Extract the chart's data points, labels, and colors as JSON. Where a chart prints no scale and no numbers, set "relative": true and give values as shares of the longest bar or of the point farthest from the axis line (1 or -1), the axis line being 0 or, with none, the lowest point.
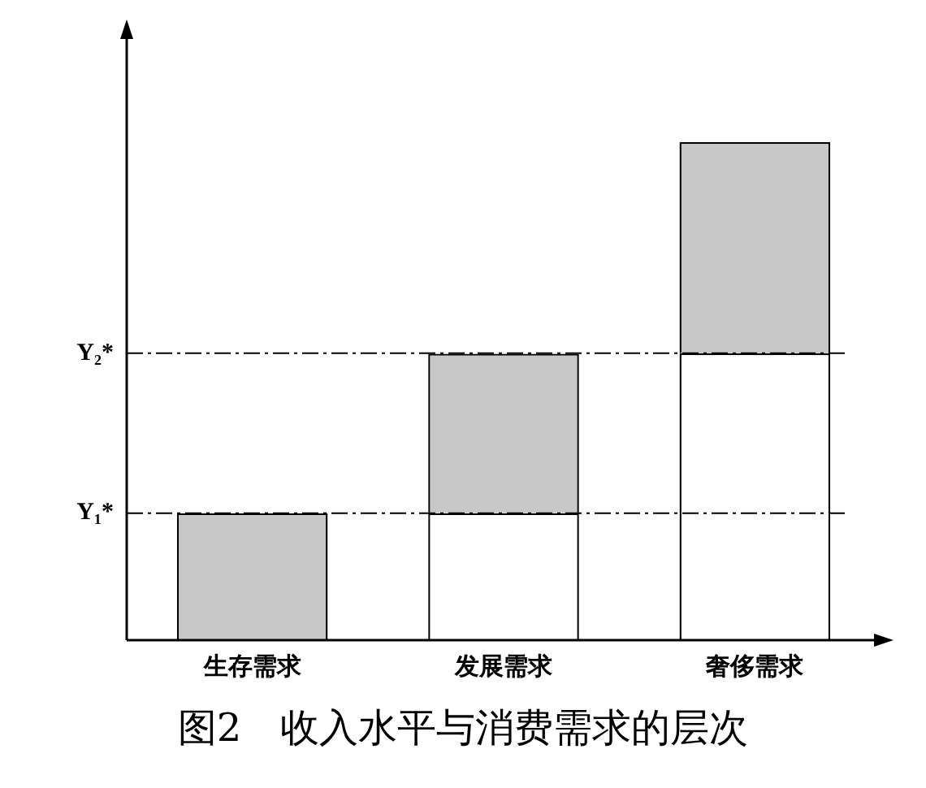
{
  "chart_data": {
    "type": "bar",
    "title": "图2　收入水平与消费需求的层次",
    "categories": [
      "生存需求",
      "发展需求",
      "奢侈需求"
    ],
    "relative": true,
    "stacked": true,
    "series": [
      {
        "color": "#ffffff",
        "values": [
          0,
          0.255,
          0.576
        ]
      },
      {
        "color": "#c8c8c8",
        "values": [
          0.255,
          0.32,
          0.424
        ]
      }
    ],
    "ref_lines": [
      {
        "axis": "y",
        "value": 0.255,
        "label": "Y₁*",
        "line_style": "dashed"
      },
      {
        "axis": "y",
        "value": 0.576,
        "label": "Y₂*",
        "line_style": "dashed"
      }
    ],
    "grid": false,
    "legend": false
  }
}
